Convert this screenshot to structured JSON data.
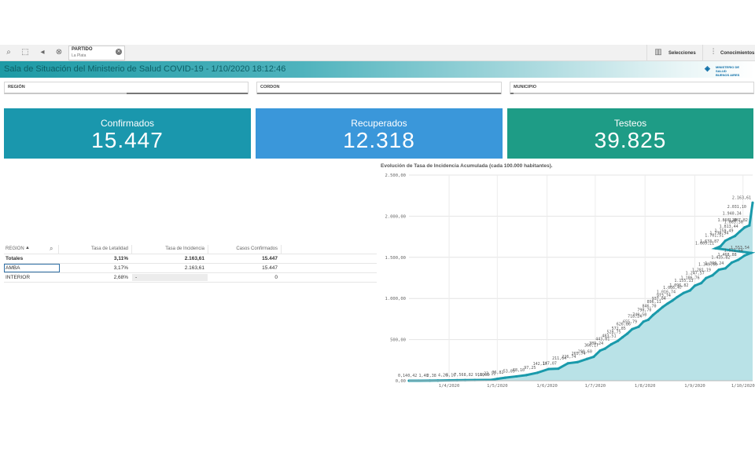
{
  "toolbar": {
    "chip_title": "PARTIDO",
    "chip_value": "La Plata",
    "selecciones": "Selecciones",
    "conocimientos": "Conocimientos"
  },
  "title": "Sala de Situación del Ministerio de Salud COVID-19 - 1/10/2020 18:12:46",
  "logo": {
    "line1": "MINISTERIO DE",
    "line2": "SALUD",
    "line3": "BUENOS AIRES"
  },
  "filters": [
    "REGIÓN",
    "CORDON",
    "MUNICIPIO"
  ],
  "kpis": [
    {
      "label": "Confirmados",
      "value": "15.447",
      "color": "#1a97ad"
    },
    {
      "label": "Recuperados",
      "value": "12.318",
      "color": "#3a97da"
    },
    {
      "label": "Testeos",
      "value": "39.825",
      "color": "#1e9c86"
    }
  ],
  "table": {
    "headers": [
      "REGION",
      "Tasa de Letalidad",
      "Tasa de Incidencia",
      "Casos Confirmados"
    ],
    "totals": [
      "Totales",
      "3,11%",
      "2.163,61",
      "15.447"
    ],
    "rows": [
      [
        "AMBA",
        "3,17%",
        "2.163,61",
        "15.447"
      ],
      [
        "INTERIOR",
        "2,68%",
        "-",
        "0"
      ]
    ]
  },
  "chart_data": {
    "type": "area",
    "title": "Evolución de Tasa de Incidencia Acumulada (cada 100.000 habitantes).",
    "ylim": [
      0,
      2500
    ],
    "yticks": [
      "2.500,00",
      "2.000,00",
      "1.500,00",
      "1.000,00",
      "500,00",
      "0,00"
    ],
    "ytick_values": [
      2500,
      2000,
      1500,
      1000,
      500,
      0
    ],
    "xlim": [
      0,
      214
    ],
    "xticks": [
      {
        "label": "1/4/2020",
        "x": 25
      },
      {
        "label": "1/5/2020",
        "x": 55
      },
      {
        "label": "1/6/2020",
        "x": 86
      },
      {
        "label": "1/7/2020",
        "x": 116
      },
      {
        "label": "1/8/2020",
        "x": 147
      },
      {
        "label": "1/9/2020",
        "x": 178
      },
      {
        "label": "1/10/2020",
        "x": 208
      }
    ],
    "color": "#1a9aab",
    "fill": "#b9e2e7",
    "x": [
      0,
      6,
      13,
      18,
      25,
      30,
      35,
      41,
      48,
      51,
      55,
      60,
      67,
      73,
      80,
      87,
      93,
      99,
      105,
      111,
      115,
      119,
      122,
      126,
      130,
      133,
      136,
      139,
      143,
      146,
      149,
      152,
      155,
      158,
      161,
      164,
      167,
      171,
      175,
      178,
      182,
      185,
      189,
      193,
      197,
      201,
      205,
      209,
      213
    ],
    "y": [
      0.14,
      0.42,
      1.4,
      2.38,
      4.2,
      6.16,
      7.56,
      8.82,
      9.1,
      10.08,
      23.11,
      36.82,
      53.09,
      68.1,
      97.25,
      142.17,
      147.07,
      211.64,
      226.74,
      265.74,
      290.6,
      366.17,
      389.24,
      443.01,
      483.51,
      528.75,
      572.85,
      626.86,
      655.79,
      718.24,
      740.5,
      798.7,
      846.7,
      896.11,
      937.04,
      973.74,
      1016.74,
      1066.47,
      1096.82,
      1155.13,
      1186.76,
      1247.57,
      1281.19,
      1349.6,
      1366.24,
      1435.82,
      1468.88,
      1521.54,
      1553.54
    ],
    "labels": [
      "0,14",
      "0,42",
      "1,40",
      "2,38",
      "4,20",
      "6,16",
      "7,56",
      "8,82",
      "9,10",
      "10,08",
      "23,11",
      "36,82",
      "53,09",
      "68,10",
      "97,25",
      "142,17",
      "147,07",
      "211,64",
      "226,74",
      "265,74",
      "290,60",
      "366,17",
      "389,24",
      "443,01",
      "483,51",
      "528,75",
      "572,85",
      "626,86",
      "655,79",
      "718,24",
      "740,50",
      "798,70",
      "846,70",
      "896,11",
      "937,04",
      "973,74",
      "1.016,74",
      "1.066,47",
      "1.096,82",
      "1.155,13",
      "1.186,76",
      "1.247,57",
      "1.281,19",
      "1.349,60",
      "1.366,24",
      "1.435,82",
      "1.468,88",
      "1.521,54",
      "1.553,54"
    ],
    "late_x": [
      191,
      194,
      197,
      200,
      203,
      206,
      209,
      212,
      214
    ],
    "late_y": [
      1609.21,
      1633.87,
      1701.51,
      1730.94,
      1759.49,
      1813.44,
      1863.3,
      1887.82,
      2163.61
    ],
    "late_labels": [
      "1.609,21",
      "1.633,87",
      "1.701,51",
      "1.730,94",
      "1.759,49",
      "1.813,44",
      "1.863,30",
      "1.887,82",
      "2.163,61"
    ],
    "extra_labels": [
      "1.860,10",
      "1.940,34",
      "2.031,10"
    ]
  }
}
